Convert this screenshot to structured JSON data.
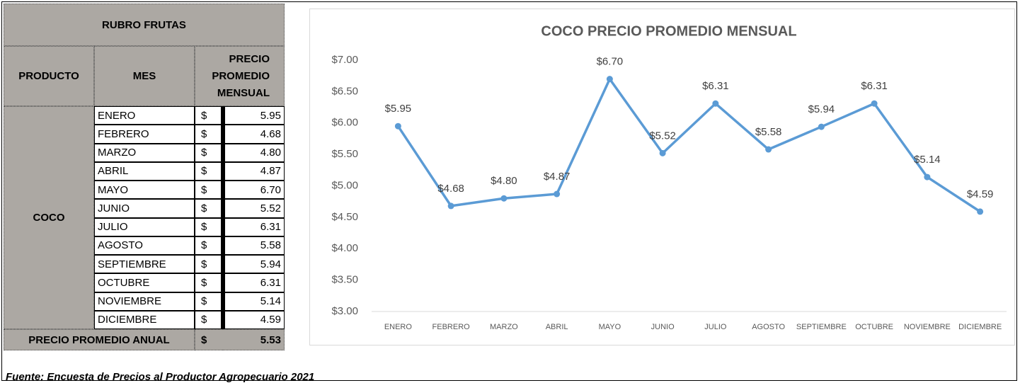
{
  "table": {
    "title": "RUBRO FRUTAS",
    "headers": [
      "PRODUCTO",
      "MES",
      "PRECIO PROMEDIO MENSUAL"
    ],
    "product": "COCO",
    "rows": [
      [
        "ENERO",
        "$",
        "5.95"
      ],
      [
        "FEBRERO",
        "$",
        "4.68"
      ],
      [
        "MARZO",
        "$",
        "4.80"
      ],
      [
        "ABRIL",
        "$",
        "4.87"
      ],
      [
        "MAYO",
        "$",
        "6.70"
      ],
      [
        "JUNIO",
        "$",
        "5.52"
      ],
      [
        "JULIO",
        "$",
        "6.31"
      ],
      [
        "AGOSTO",
        "$",
        "5.58"
      ],
      [
        "SEPTIEMBRE",
        "$",
        "5.94"
      ],
      [
        "OCTUBRE",
        "$",
        "6.31"
      ],
      [
        "NOVIEMBRE",
        "$",
        "5.14"
      ],
      [
        "DICIEMBRE",
        "$",
        "4.59"
      ]
    ],
    "footer": [
      "PRECIO PROMEDIO ANUAL",
      "$",
      "5.53"
    ]
  },
  "chart_data": {
    "type": "line",
    "title": "COCO PRECIO PROMEDIO MENSUAL",
    "categories": [
      "ENERO",
      "FEBRERO",
      "MARZO",
      "ABRIL",
      "MAYO",
      "JUNIO",
      "JULIO",
      "AGOSTO",
      "SEPTIEMBRE",
      "OCTUBRE",
      "NOVIEMBRE",
      "DICIEMBRE"
    ],
    "values": [
      5.95,
      4.68,
      4.8,
      4.87,
      6.7,
      5.52,
      6.31,
      5.58,
      5.94,
      6.31,
      5.14,
      4.59
    ],
    "value_labels": [
      "$5.95",
      "$4.68",
      "$4.80",
      "$4.87",
      "$6.70",
      "$5.52",
      "$6.31",
      "$5.58",
      "$5.94",
      "$6.31",
      "$5.14",
      "$4.59"
    ],
    "color": "#5b9bd5",
    "ylim": [
      3,
      7
    ],
    "yticks": [
      {
        "value": 3,
        "label": "$3.00"
      },
      {
        "value": 3.5,
        "label": "$3.50"
      },
      {
        "value": 4,
        "label": "$4.00"
      },
      {
        "value": 4.5,
        "label": "$4.50"
      },
      {
        "value": 5,
        "label": "$5.00"
      },
      {
        "value": 5.5,
        "label": "$5.50"
      },
      {
        "value": 6,
        "label": "$6.00"
      },
      {
        "value": 6.5,
        "label": "$6.50"
      },
      {
        "value": 7,
        "label": "$7.00"
      }
    ],
    "grid": false
  },
  "source": "Fuente: Encuesta de Precios al Productor Agropecuario 2021"
}
